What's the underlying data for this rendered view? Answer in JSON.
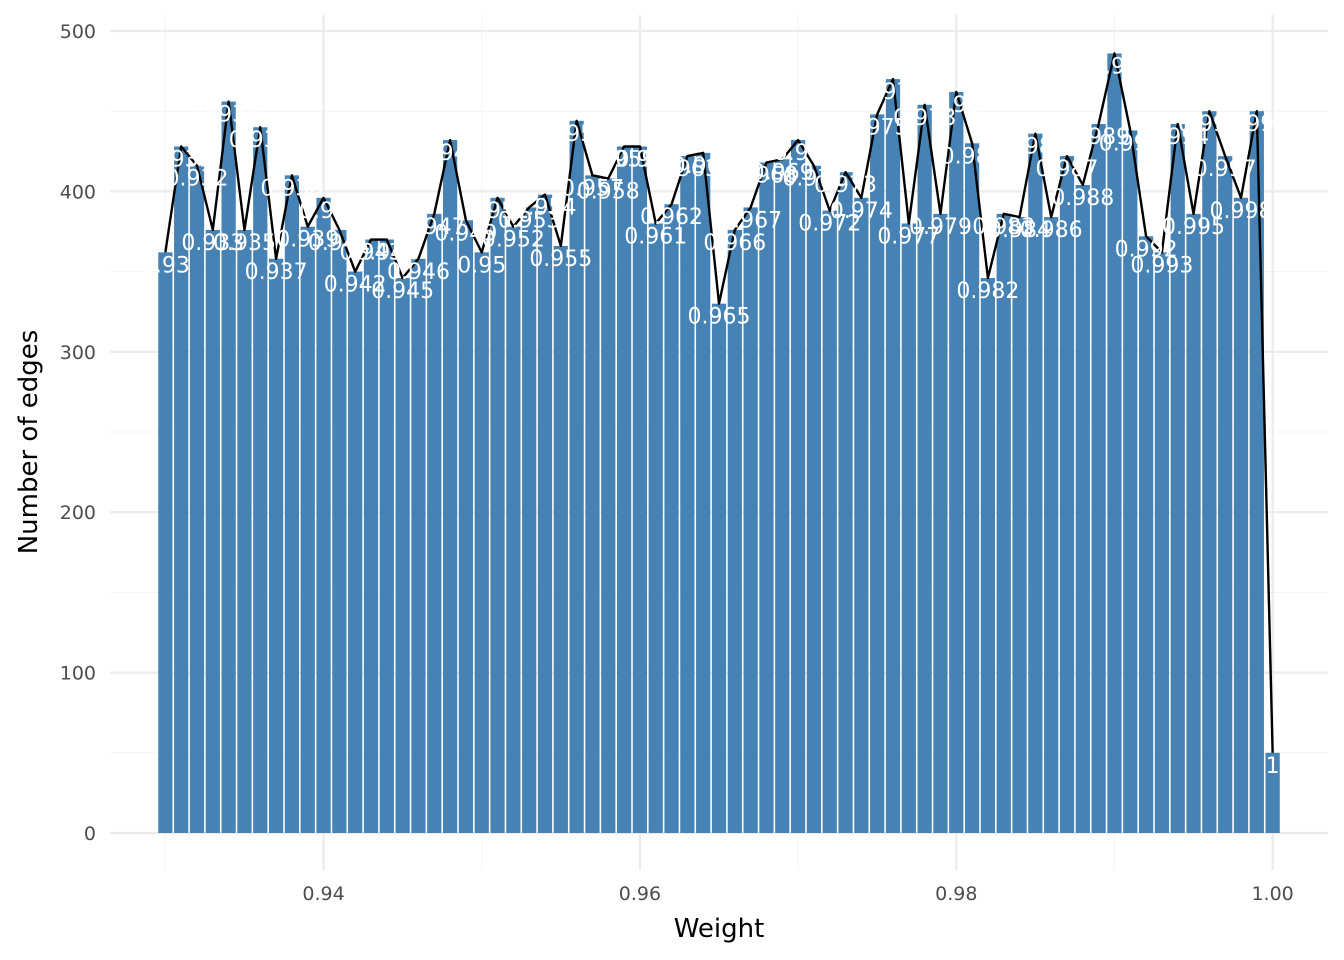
{
  "chart_data": {
    "type": "bar",
    "title": "",
    "xlabel": "Weight",
    "ylabel": "Number of edges",
    "xlim": [
      0.9265,
      1.0035
    ],
    "ylim": [
      0,
      500
    ],
    "x_ticks": [
      0.94,
      0.96,
      0.98,
      1.0
    ],
    "x_tick_labels": [
      "0.94",
      "0.96",
      "0.98",
      "1.00"
    ],
    "y_ticks": [
      0,
      100,
      200,
      300,
      400,
      500
    ],
    "y_tick_labels": [
      "0",
      "100",
      "200",
      "300",
      "400",
      "500"
    ],
    "grid": true,
    "legend": "none",
    "bar_color": "#4682B4",
    "line_color": "#000000",
    "overlay": "line through bar tops",
    "categories": [
      0.93,
      0.931,
      0.932,
      0.933,
      0.934,
      0.935,
      0.936,
      0.937,
      0.938,
      0.939,
      0.94,
      0.941,
      0.942,
      0.943,
      0.944,
      0.945,
      0.946,
      0.947,
      0.948,
      0.949,
      0.95,
      0.951,
      0.952,
      0.953,
      0.954,
      0.955,
      0.956,
      0.957,
      0.958,
      0.959,
      0.96,
      0.961,
      0.962,
      0.963,
      0.964,
      0.965,
      0.966,
      0.967,
      0.968,
      0.969,
      0.97,
      0.971,
      0.972,
      0.973,
      0.974,
      0.975,
      0.976,
      0.977,
      0.978,
      0.979,
      0.98,
      0.981,
      0.982,
      0.983,
      0.984,
      0.985,
      0.986,
      0.987,
      0.988,
      0.989,
      0.99,
      0.991,
      0.992,
      0.993,
      0.994,
      0.995,
      0.996,
      0.997,
      0.998,
      0.999,
      1.0
    ],
    "values": [
      362,
      428,
      416,
      376,
      456,
      376,
      440,
      358,
      410,
      378,
      396,
      376,
      350,
      370,
      370,
      346,
      358,
      386,
      432,
      382,
      362,
      396,
      378,
      390,
      398,
      366,
      444,
      410,
      408,
      428,
      428,
      380,
      392,
      422,
      424,
      330,
      376,
      390,
      418,
      420,
      432,
      416,
      388,
      412,
      396,
      448,
      470,
      380,
      454,
      386,
      462,
      430,
      346,
      386,
      384,
      436,
      384,
      422,
      404,
      442,
      486,
      438,
      372,
      362,
      442,
      386,
      450,
      422,
      396,
      450,
      50
    ],
    "bar_labels": [
      "0.93",
      "0.931",
      "0.932",
      "0.933",
      "0.934",
      "0.935",
      "0.936",
      "0.937",
      "0.938",
      "0.939",
      "0.94",
      "0.941",
      "0.942",
      "0.943",
      "0.944",
      "0.945",
      "0.946",
      "0.947",
      "0.948",
      "0.949",
      "0.95",
      "0.951",
      "0.952",
      "0.953",
      "0.954",
      "0.955",
      "0.956",
      "0.957",
      "0.958",
      "0.959",
      "0.96",
      "0.961",
      "0.962",
      "0.963",
      "0.964",
      "0.965",
      "0.966",
      "0.967",
      "0.968",
      "0.969",
      "0.97",
      "0.971",
      "0.972",
      "0.973",
      "0.974",
      "0.975",
      "0.976",
      "0.977",
      "0.978",
      "0.979",
      "0.98",
      "0.981",
      "0.982",
      "0.983",
      "0.984",
      "0.985",
      "0.986",
      "0.987",
      "0.988",
      "0.989",
      "0.99",
      "0.991",
      "0.992",
      "0.993",
      "0.994",
      "0.995",
      "0.996",
      "0.997",
      "0.998",
      "0.999",
      "1"
    ]
  }
}
